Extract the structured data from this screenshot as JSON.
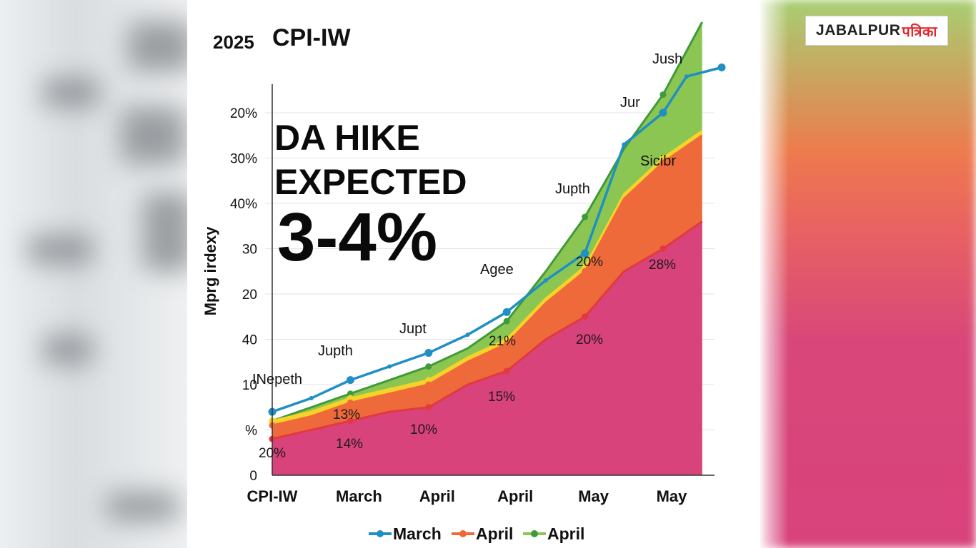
{
  "page": {
    "logo_text": "JABALPUR",
    "logo_hindi": "पत्रिका"
  },
  "colors": {
    "pink": "#d8437b",
    "red_line": "#e03a3e",
    "orange": "#ef6a3a",
    "yellow": "#f6d22a",
    "green": "#8cc652",
    "green_line": "#3f9a3a",
    "blue": "#1f8fc4"
  },
  "headline": {
    "line1": "DA HIKE",
    "line2": "EXPECTED",
    "line3": "3-4%"
  },
  "annotations": [
    {
      "text": "INepeth"
    },
    {
      "text": "Jupth"
    },
    {
      "text": "Jupt"
    },
    {
      "text": "Agee"
    },
    {
      "text": "Jupth"
    },
    {
      "text": "Jur"
    },
    {
      "text": "Jush"
    },
    {
      "text": "Sicibr"
    }
  ],
  "point_labels": [
    "20%",
    "14%",
    "13%",
    "10%",
    "15%",
    "21%",
    "20%",
    "20%",
    "28%"
  ],
  "chart_data": {
    "type": "area",
    "title": "CPI-IW",
    "title_prefix": "2025",
    "ylabel": "Mprg irdexy",
    "xlabel": "",
    "y_tick_labels": [
      "0",
      "%",
      "10",
      "40",
      "20",
      "30",
      "40%",
      "30%",
      "20%"
    ],
    "categories": [
      "CPI-IW",
      "March",
      "April",
      "April",
      "May",
      "May"
    ],
    "x": [
      0,
      1,
      2,
      3,
      4,
      5
    ],
    "grid": true,
    "legend_position": "bottom",
    "series": [
      {
        "name": "",
        "kind": "area",
        "color": "#d8437b",
        "x": [
          0,
          0.5,
          1,
          1.5,
          2,
          2.5,
          3,
          3.5,
          4,
          4.5,
          5,
          5.5
        ],
        "values": [
          0.8,
          1.0,
          1.2,
          1.4,
          1.5,
          2.0,
          2.3,
          3.0,
          3.5,
          4.5,
          5.0,
          5.6
        ]
      },
      {
        "name": "April",
        "kind": "area",
        "color": "#ef6a3a",
        "x": [
          0,
          0.5,
          1,
          1.5,
          2,
          2.5,
          3,
          3.5,
          4,
          4.5,
          5,
          5.5
        ],
        "values": [
          1.1,
          1.3,
          1.6,
          1.8,
          2.0,
          2.5,
          2.9,
          3.8,
          4.5,
          6.1,
          6.9,
          7.5
        ]
      },
      {
        "name": "",
        "kind": "area",
        "color": "#f6d22a",
        "x": [
          0,
          0.5,
          1,
          1.5,
          2,
          2.5,
          3,
          3.5,
          4,
          4.5,
          5,
          5.5
        ],
        "values": [
          1.2,
          1.4,
          1.7,
          1.9,
          2.1,
          2.6,
          3.0,
          3.9,
          4.6,
          6.2,
          7.0,
          7.6
        ]
      },
      {
        "name": "April",
        "kind": "area",
        "color": "#8cc652",
        "x": [
          0,
          0.5,
          1,
          1.5,
          2,
          2.5,
          3,
          3.5,
          4,
          4.5,
          5,
          5.5
        ],
        "values": [
          1.2,
          1.5,
          1.8,
          2.1,
          2.4,
          2.8,
          3.4,
          4.5,
          5.7,
          7.2,
          8.4,
          10.0
        ]
      },
      {
        "name": "March",
        "kind": "line",
        "color": "#1f8fc4",
        "x": [
          0,
          0.5,
          1,
          1.5,
          2,
          2.5,
          3,
          3.5,
          4,
          4.5,
          5,
          5.3,
          5.75
        ],
        "values": [
          1.4,
          1.7,
          2.1,
          2.4,
          2.7,
          3.1,
          3.6,
          4.3,
          4.9,
          7.3,
          8.0,
          8.8,
          9.0
        ]
      }
    ]
  }
}
